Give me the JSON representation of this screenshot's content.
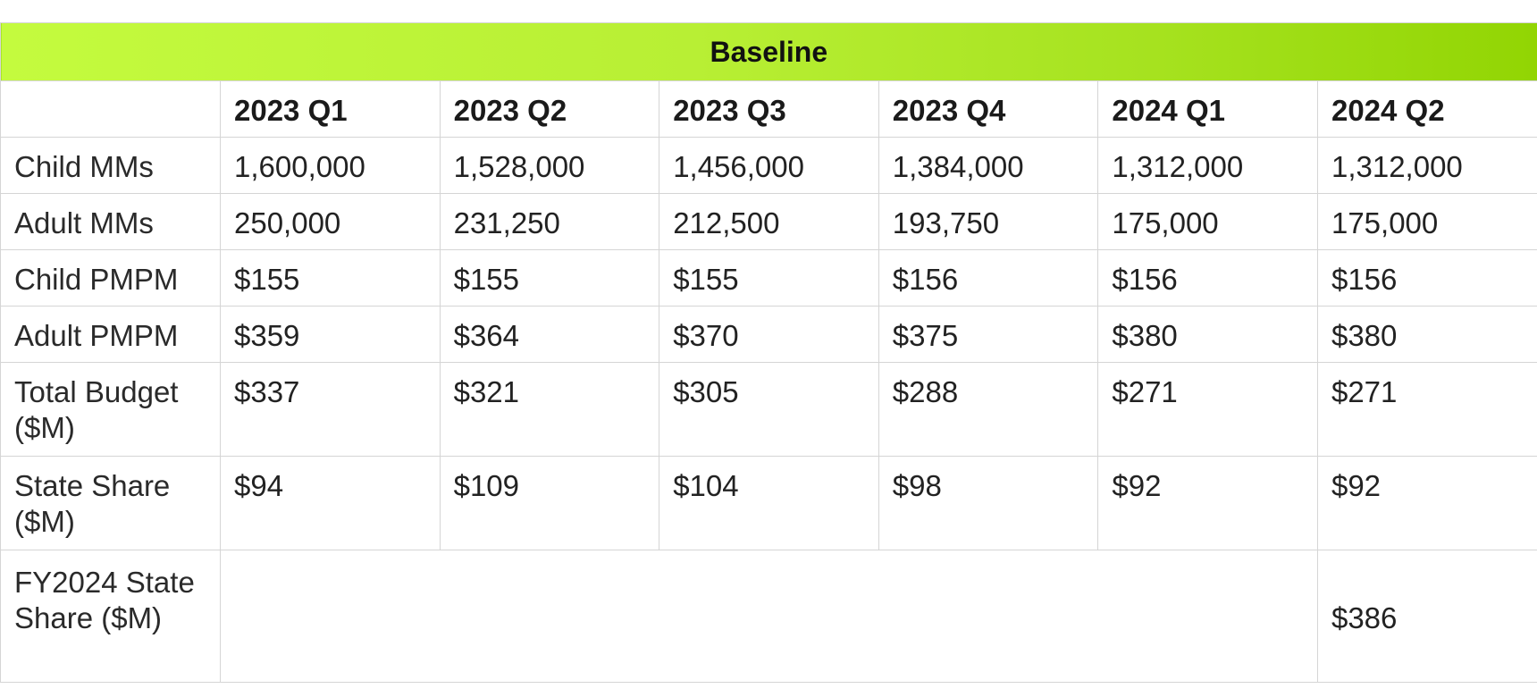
{
  "table": {
    "title": "Baseline",
    "columns": [
      "",
      "2023 Q1",
      "2023 Q2",
      "2023 Q3",
      "2023 Q4",
      "2024 Q1",
      "2024 Q2"
    ],
    "rows": [
      {
        "label": "Child MMs",
        "values": [
          "1,600,000",
          "1,528,000",
          "1,456,000",
          "1,384,000",
          "1,312,000",
          "1,312,000"
        ]
      },
      {
        "label": "Adult MMs",
        "values": [
          "250,000",
          "231,250",
          "212,500",
          "193,750",
          "175,000",
          "175,000"
        ]
      },
      {
        "label": "Child PMPM",
        "values": [
          "$155",
          "$155",
          "$155",
          "$156",
          "$156",
          "$156"
        ]
      },
      {
        "label": "Adult PMPM",
        "values": [
          "$359",
          "$364",
          "$370",
          "$375",
          "$380",
          "$380"
        ]
      },
      {
        "label": "Total Budget ($M)",
        "values": [
          "$337",
          "$321",
          "$305",
          "$288",
          "$271",
          "$271"
        ]
      },
      {
        "label": "State Share ($M)",
        "values": [
          "$94",
          "$109",
          "$104",
          "$98",
          "$92",
          "$92"
        ]
      }
    ],
    "fy_row": {
      "label": "FY2024 State Share ($M)",
      "values": [
        "",
        "",
        "",
        "",
        "",
        "$386"
      ]
    },
    "colors": {
      "banner_start": "#c4fb3e",
      "banner_end": "#92d503",
      "border": "#d5d5d5"
    }
  }
}
